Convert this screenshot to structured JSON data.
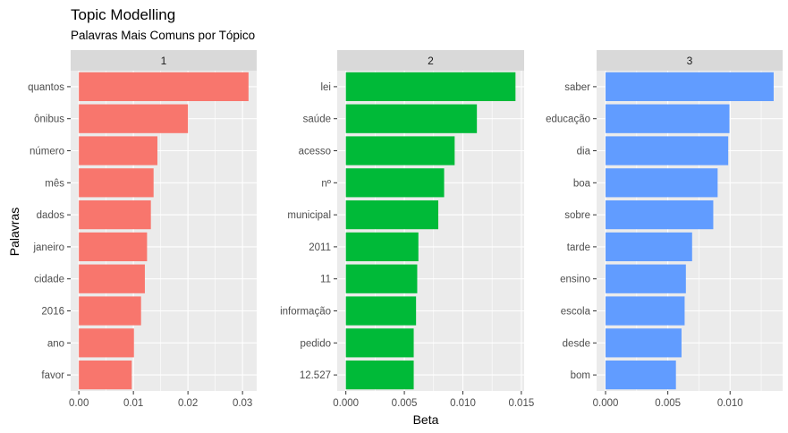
{
  "chart_data": {
    "type": "bar",
    "orientation": "horizontal",
    "title": "Topic Modelling",
    "subtitle": "Palavras Mais Comuns por Tópico",
    "xlabel": "Beta",
    "ylabel": "Palavras",
    "grid": true,
    "legend": "none",
    "facets": [
      {
        "strip": "1",
        "color": "#F8766D",
        "xlim": [
          -0.0015,
          0.0326
        ],
        "xticks": [
          0,
          0.01,
          0.02,
          0.03
        ],
        "xtick_labels": [
          "0.00",
          "0.01",
          "0.02",
          "0.03"
        ],
        "categories": [
          "quantos",
          "ônibus",
          "número",
          "mês",
          "dados",
          "janeiro",
          "cidade",
          "2016",
          "ano",
          "favor"
        ],
        "values": [
          0.0311,
          0.02,
          0.0144,
          0.0137,
          0.0132,
          0.0125,
          0.0121,
          0.0114,
          0.0101,
          0.0097
        ]
      },
      {
        "strip": "2",
        "color": "#00BA38",
        "xlim": [
          -0.00074,
          0.01524
        ],
        "xticks": [
          0,
          0.005,
          0.01,
          0.015
        ],
        "xtick_labels": [
          "0.000",
          "0.005",
          "0.010",
          "0.015"
        ],
        "categories": [
          "lei",
          "saúde",
          "acesso",
          "nº",
          "municipal",
          "2011",
          "11",
          "informação",
          "pedido",
          "12.527"
        ],
        "values": [
          0.0145,
          0.0112,
          0.0093,
          0.0084,
          0.0079,
          0.0062,
          0.0061,
          0.006,
          0.0058,
          0.0058
        ]
      },
      {
        "strip": "3",
        "color": "#619CFF",
        "xlim": [
          -0.00072,
          0.01422
        ],
        "xticks": [
          0,
          0.005,
          0.01
        ],
        "xtick_labels": [
          "0.000",
          "0.005",
          "0.010"
        ],
        "categories": [
          "saber",
          "educação",
          "dia",
          "boa",
          "sobre",
          "tarde",
          "ensino",
          "escola",
          "desde",
          "bom"
        ],
        "values": [
          0.0135,
          0.00995,
          0.00985,
          0.009,
          0.00865,
          0.00695,
          0.00645,
          0.00635,
          0.0061,
          0.00565
        ]
      }
    ]
  }
}
